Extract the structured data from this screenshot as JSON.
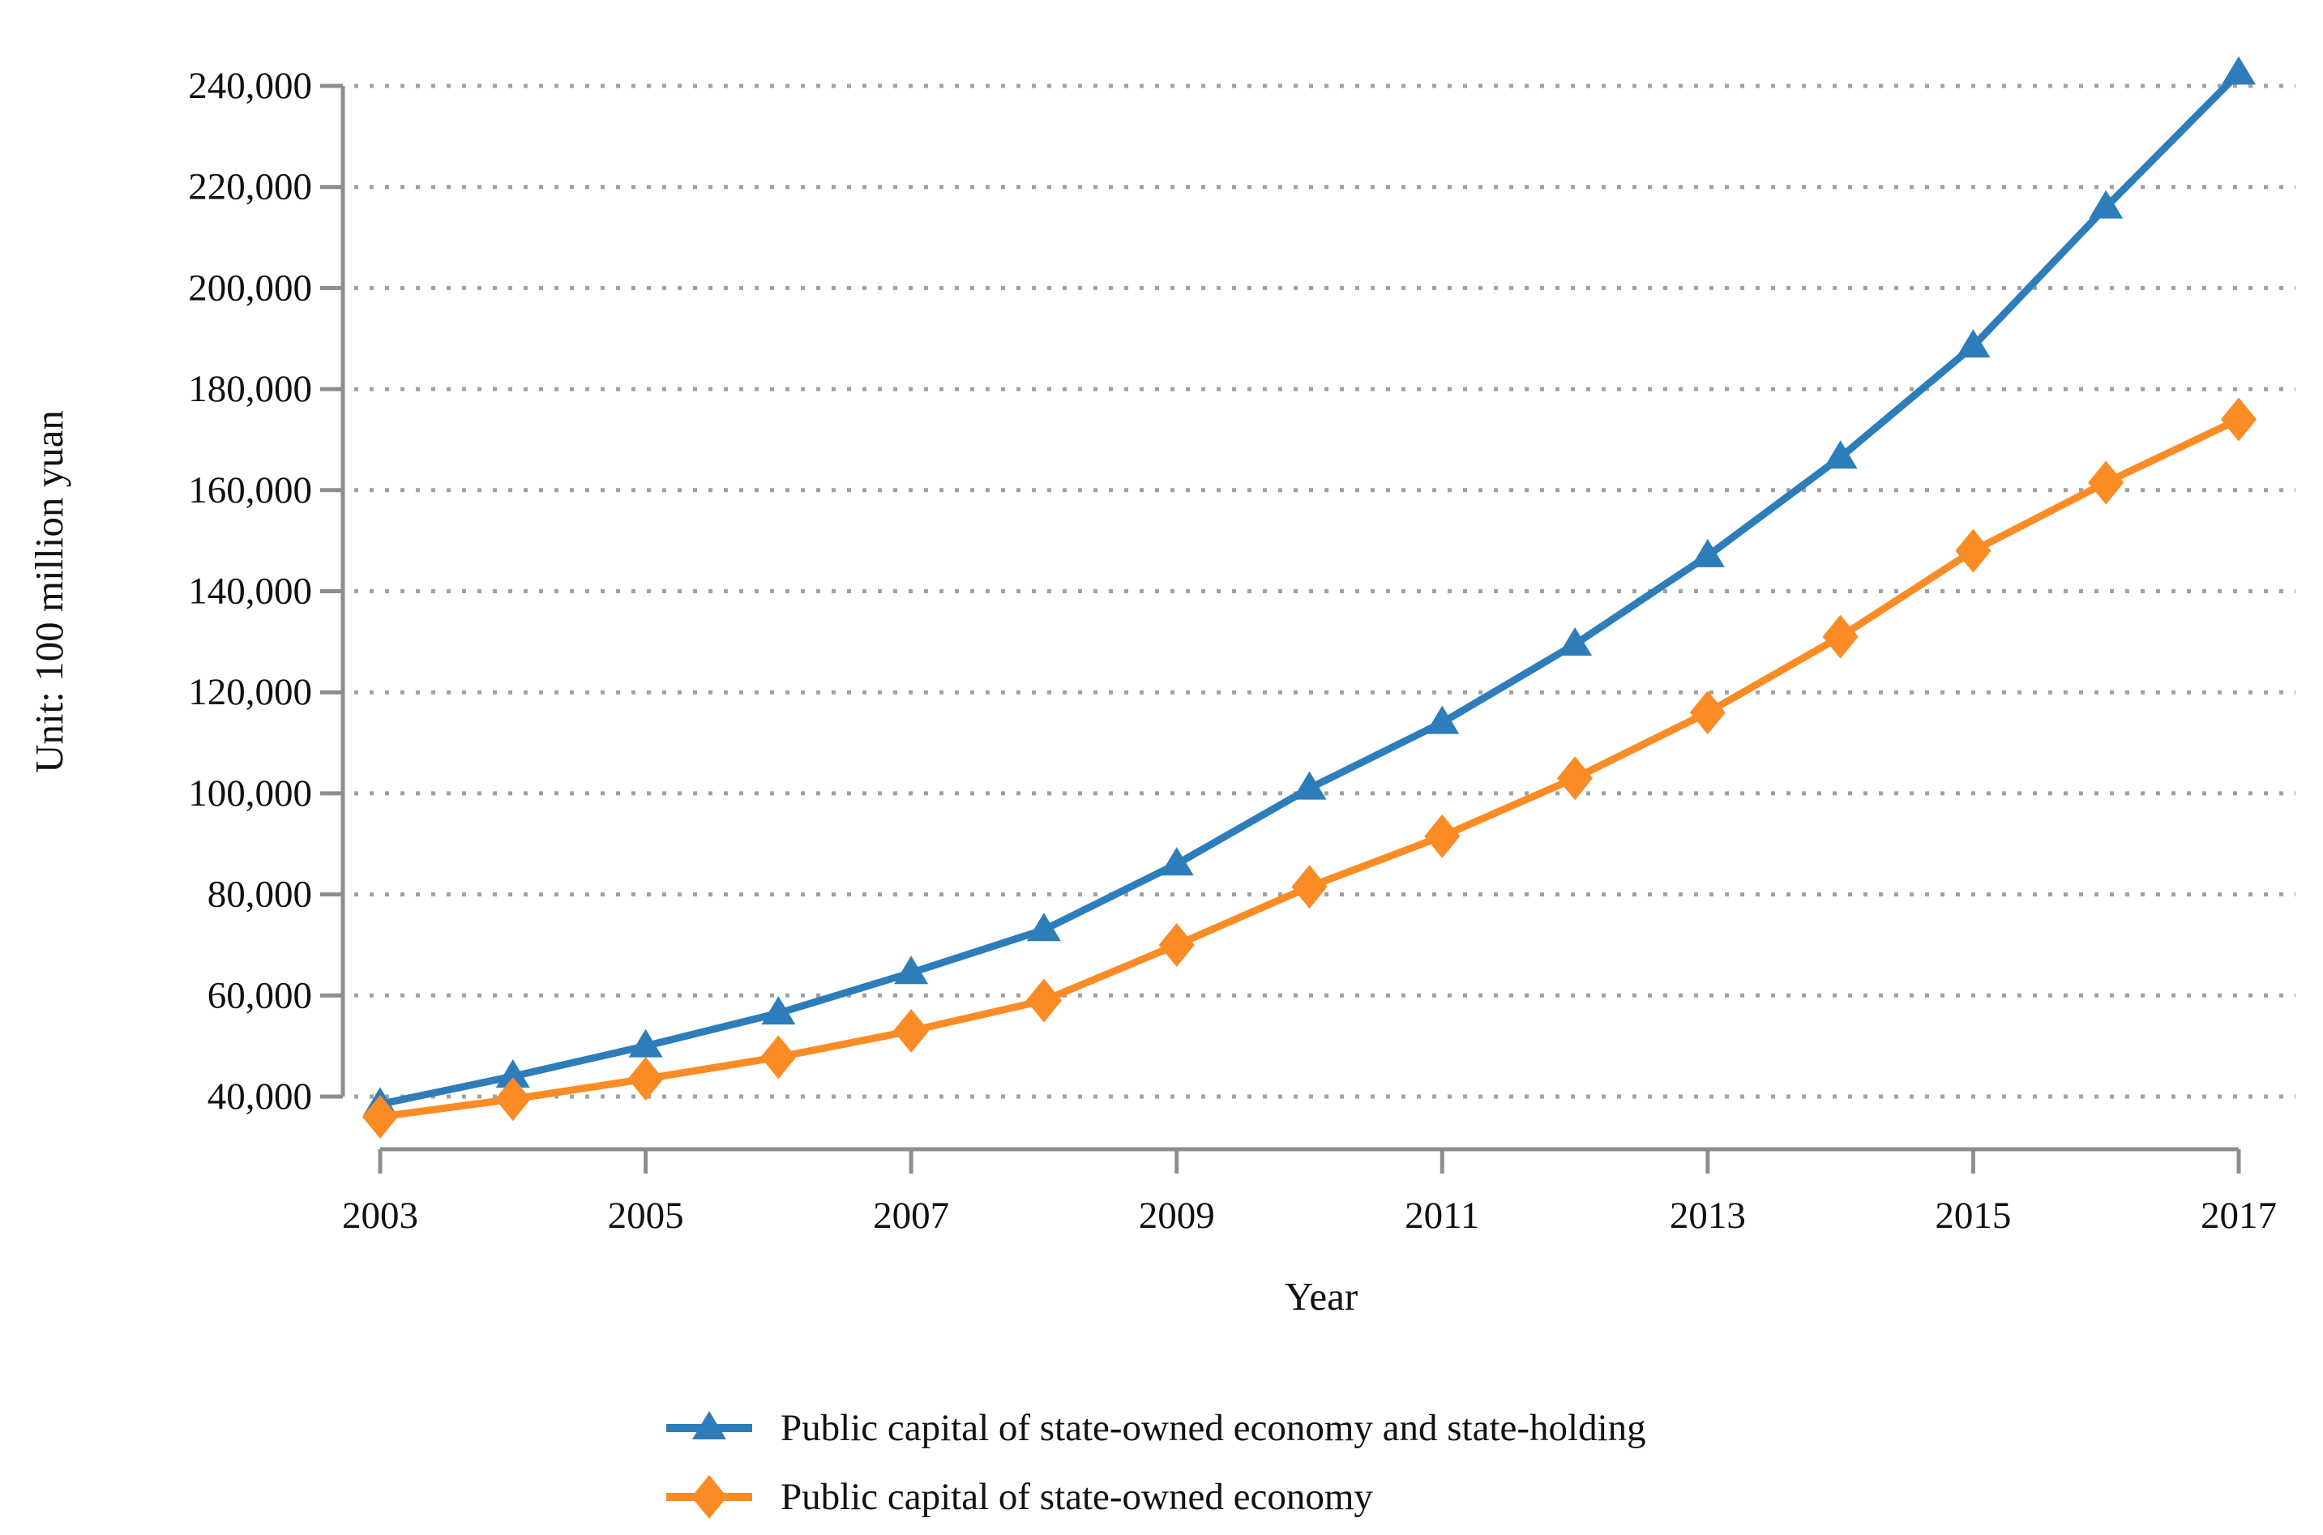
{
  "page": {
    "background": "#ffffff"
  },
  "chart_data": {
    "type": "line",
    "title": "",
    "xlabel": "Year",
    "ylabel": "Unit: 100 million yuan",
    "x": [
      2003,
      2004,
      2005,
      2006,
      2007,
      2008,
      2009,
      2010,
      2011,
      2012,
      2013,
      2014,
      2015,
      2016,
      2017
    ],
    "series": [
      {
        "name": "Public capital of state-owned economy and state-holding",
        "color": "#2d7dbb",
        "marker": "triangle-up",
        "values": [
          38500,
          44000,
          50000,
          56500,
          64500,
          73000,
          86000,
          101000,
          114000,
          129500,
          147000,
          166500,
          188500,
          216000,
          242500
        ]
      },
      {
        "name": "Public capital of state-owned economy",
        "color": "#fa8b25",
        "marker": "diamond",
        "values": [
          36000,
          39500,
          43500,
          47800,
          53000,
          59000,
          70000,
          81500,
          91500,
          103000,
          116000,
          131000,
          148000,
          161500,
          174000
        ]
      }
    ],
    "y_ticks": [
      40000,
      60000,
      80000,
      100000,
      120000,
      140000,
      160000,
      180000,
      200000,
      220000,
      240000
    ],
    "x_ticks": [
      2003,
      2005,
      2007,
      2009,
      2011,
      2013,
      2015,
      2017
    ],
    "ylim": [
      40000,
      240000
    ],
    "grid": {
      "horizontal": true,
      "style": "dotted",
      "color": "#a1a1a1"
    },
    "axis_color": "#8e8e8e",
    "tick_label_color": "#111111",
    "legend_position": "bottom-left"
  }
}
